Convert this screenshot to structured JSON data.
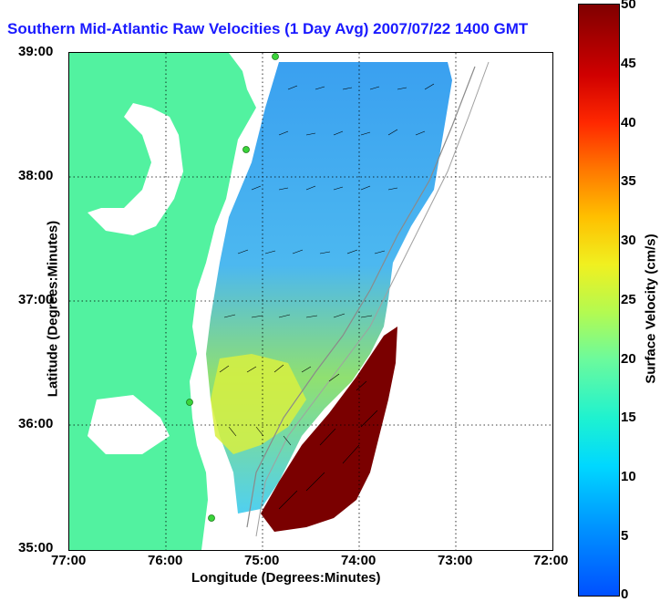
{
  "title": "Southern Mid-Atlantic Raw Velocities (1 Day Avg) 2007/07/22 1400 GMT",
  "axes": {
    "x_label": "Longitude (Degrees:Minutes)",
    "y_label": "Latitude (Degrees:Minutes)",
    "x_ticks": [
      "77:00",
      "76:00",
      "75:00",
      "74:00",
      "73:00",
      "72:00"
    ],
    "y_ticks": [
      "39:00",
      "38:00",
      "37:00",
      "36:00",
      "35:00"
    ]
  },
  "colorbar": {
    "label": "Surface Velocity (cm/s)",
    "ticks": [
      "50",
      "45",
      "40",
      "35",
      "30",
      "25",
      "20",
      "15",
      "10",
      "5",
      "0"
    ]
  },
  "colors": {
    "land": "#52f2a0",
    "water": "#ffffff",
    "title": "#1a1aff",
    "station": "#3ad43a"
  }
}
